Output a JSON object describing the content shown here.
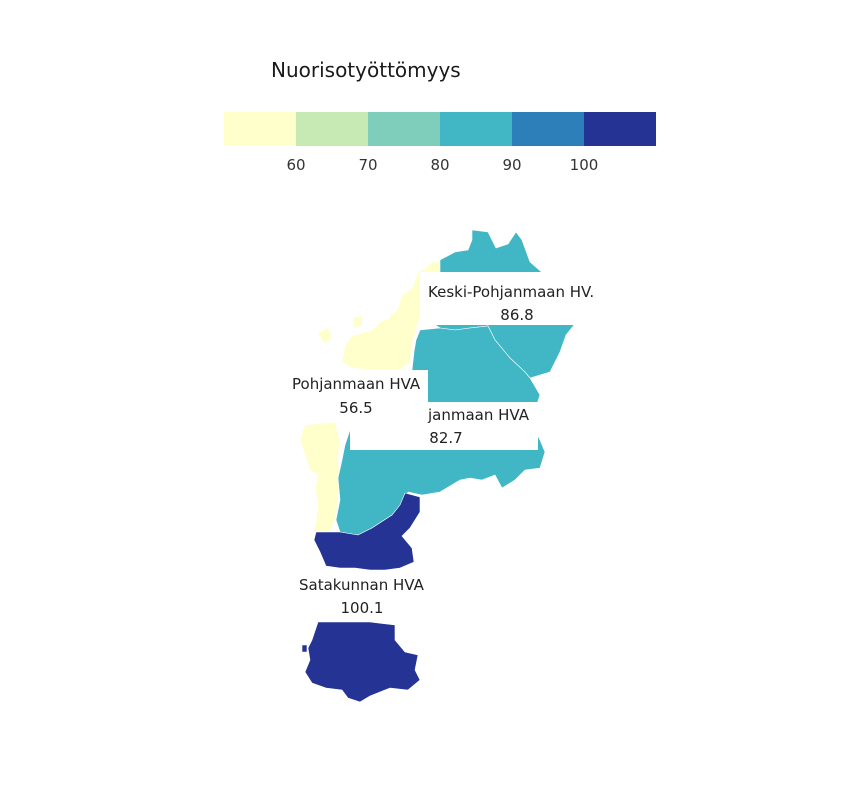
{
  "legend": {
    "title": "Nuorisotyöttömyys",
    "bins": [
      {
        "color": "#ffffcc"
      },
      {
        "color": "#c7e9b4"
      },
      {
        "color": "#7fcdbb"
      },
      {
        "color": "#41b6c4"
      },
      {
        "color": "#2c7fb8"
      },
      {
        "color": "#253494"
      }
    ],
    "ticks": [
      "60",
      "70",
      "80",
      "90",
      "100"
    ]
  },
  "regions": [
    {
      "id": "keski-pohjanmaa",
      "name": "Keski-Pohjanmaan HVA",
      "value": "86.8",
      "color": "#41b6c4"
    },
    {
      "id": "etela-pohjanmaa",
      "name": "Etelä-Pohjanmaan HVA",
      "value": "82.7",
      "color": "#41b6c4"
    },
    {
      "id": "pohjanmaa",
      "name": "Pohjanmaan HVA",
      "value": "56.5",
      "color": "#ffffcc"
    },
    {
      "id": "satakunta",
      "name": "Satakunnan HVA",
      "value": "100.1",
      "color": "#253494"
    }
  ],
  "labels": {
    "keski": {
      "name": "Keski-Pohjanmaan HV.",
      "value": "86.8"
    },
    "etela": {
      "name": "janmaan HVA",
      "value": "82.7"
    },
    "pohjanmaa": {
      "name": "Pohjanmaan HVA",
      "value": "56.5"
    },
    "satakunta": {
      "name": "Satakunnan HVA",
      "value": "100.1"
    }
  }
}
